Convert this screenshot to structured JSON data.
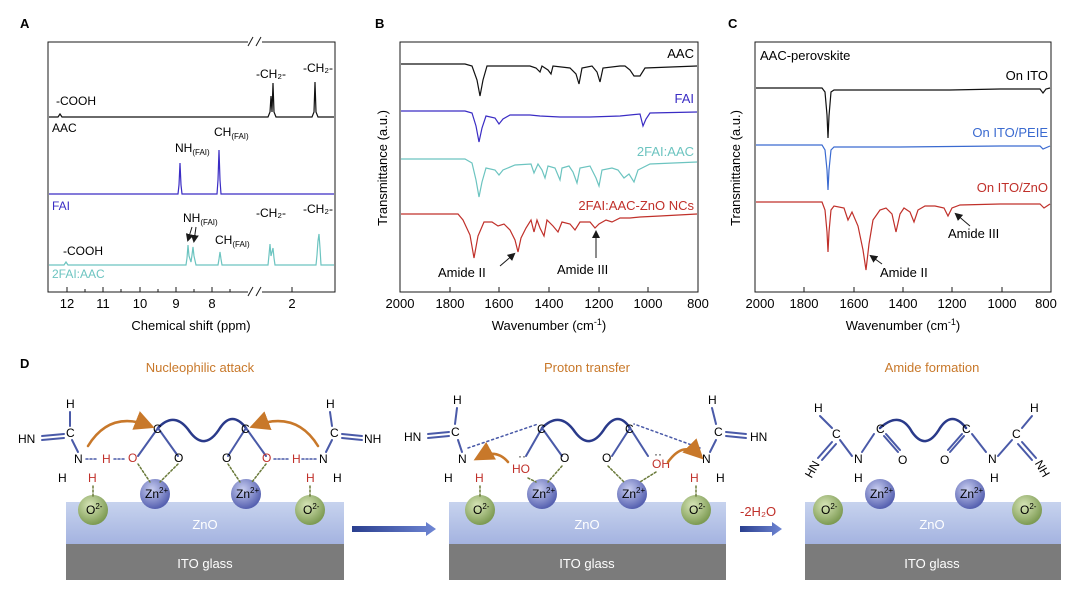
{
  "panels": {
    "A": {
      "letter": "A",
      "xlabel": "Chemical shift (ppm)",
      "ticks_left": [
        "12",
        "11",
        "10",
        "9",
        "8"
      ],
      "ticks_right": [
        "2"
      ],
      "series": [
        {
          "name": "AAC",
          "color": "#111111"
        },
        {
          "name": "FAI",
          "color": "#3a2cc4"
        },
        {
          "name": "2FAI:AAC",
          "color": "#6cc4c0"
        }
      ],
      "annotations": {
        "cooh_top": "-COOH",
        "ch2_a_top": "-CH₂-",
        "ch2_b_top": "-CH₂-",
        "nh_fai": "NH",
        "nh_fai_sub": "(FAI)",
        "ch_fai": "CH",
        "ch_fai_sub": "(FAI)",
        "cooh_bottom": "-COOH",
        "nh_bottom": "NH",
        "nh_bottom_sub": "(FAI)",
        "ch_bottom": "CH",
        "ch_bottom_sub": "(FAI)",
        "ch2_a_bottom": "-CH₂-",
        "ch2_b_bottom": "-CH₂-"
      }
    },
    "B": {
      "letter": "B",
      "xlabel": "Wavenumber (cm",
      "xlabel_sup": "-1",
      "xlabel_end": ")",
      "ylabel": "Transmittance (a.u.)",
      "ticks": [
        "2000",
        "1800",
        "1600",
        "1400",
        "1200",
        "1000",
        "800"
      ],
      "series": [
        {
          "name": "AAC",
          "color": "#111111"
        },
        {
          "name": "FAI",
          "color": "#3a2cc4"
        },
        {
          "name": "2FAI:AAC",
          "color": "#6cc4c0"
        },
        {
          "name": "2FAI:AAC-ZnO NCs",
          "color": "#c0302a"
        }
      ],
      "annotations": {
        "amide2": "Amide II",
        "amide3": "Amide III"
      }
    },
    "C": {
      "letter": "C",
      "title": "AAC-perovskite",
      "xlabel": "Wavenumber (cm",
      "xlabel_sup": "-1",
      "xlabel_end": ")",
      "ylabel": "Transmittance (a.u.)",
      "ticks": [
        "2000",
        "1800",
        "1600",
        "1400",
        "1200",
        "1000",
        "800"
      ],
      "series": [
        {
          "name": "On ITO",
          "color": "#111111"
        },
        {
          "name": "On ITO/PEIE",
          "color": "#3a6ad0"
        },
        {
          "name": "On ITO/ZnO",
          "color": "#c0302a"
        }
      ],
      "annotations": {
        "amide3": "Amide III",
        "amide2": "Amide II"
      }
    },
    "D": {
      "letter": "D",
      "steps": [
        "Nucleophilic attack",
        "Proton transfer",
        "Amide formation"
      ],
      "step_color": "#c8782a",
      "water_loss": "-2H₂O",
      "layers": {
        "zno": "ZnO",
        "ito": "ITO glass"
      },
      "ions": {
        "zn": "Zn",
        "zn_charge": "2+",
        "o": "O",
        "o_charge": "2-"
      },
      "atoms": {
        "hn": "HN",
        "nh": "NH",
        "h": "H",
        "n": "N",
        "c": "C",
        "o": "O",
        "oh": "OH",
        "ho": "HO",
        "dots": "··"
      }
    }
  },
  "chart_data": [
    {
      "panel": "A",
      "type": "line",
      "x": [
        12.6,
        12.3,
        12.0,
        11.4,
        10.0,
        9.4,
        9.17,
        9.1,
        9.02,
        8.95,
        8.4,
        8.3,
        8.25,
        2.6,
        2.45,
        2.35,
        1.5,
        1.2,
        1.05
      ],
      "series": [
        {
          "name": "AAC",
          "values": [
            0,
            0.03,
            0.05,
            0,
            0,
            0,
            0,
            0,
            0,
            0,
            0,
            0,
            0,
            0,
            0.45,
            0.6,
            0,
            0.6,
            0
          ]
        },
        {
          "name": "FAI",
          "values": [
            0,
            0,
            0,
            0,
            0,
            0,
            0.45,
            0,
            0,
            0,
            0,
            0.65,
            0,
            0,
            0,
            0,
            0,
            0,
            0
          ]
        },
        {
          "name": "2FAI:AAC",
          "values": [
            0,
            0,
            0.05,
            0,
            0,
            0,
            0,
            0.3,
            0,
            0.28,
            0,
            0.2,
            0,
            0.35,
            0.55,
            0,
            0.5,
            0.7,
            0
          ]
        }
      ],
      "xlabel": "Chemical shift (ppm)"
    },
    {
      "panel": "B",
      "type": "line",
      "xlim": [
        2000,
        800
      ],
      "x": [
        2000,
        1800,
        1720,
        1690,
        1650,
        1600,
        1550,
        1520,
        1470,
        1450,
        1420,
        1400,
        1350,
        1300,
        1270,
        1230,
        1200,
        1180,
        1150,
        1050,
        1020,
        1000,
        950,
        920,
        850,
        800
      ],
      "series": [
        {
          "name": "AAC",
          "values": [
            0,
            0,
            -0.05,
            -0.65,
            -0.05,
            -0.05,
            -0.05,
            -0.05,
            -0.15,
            -0.1,
            -0.3,
            -0.2,
            -0.05,
            -0.1,
            -0.45,
            -0.1,
            -0.45,
            -0.15,
            -0.05,
            -0.05,
            -0.05,
            -0.1,
            -0.3,
            -0.3,
            -0.05,
            0
          ]
        },
        {
          "name": "FAI",
          "values": [
            0,
            0,
            -0.05,
            -0.9,
            -0.25,
            -0.3,
            -0.3,
            -0.1,
            -0.1,
            -0.1,
            -0.1,
            -0.15,
            -0.1,
            -0.05,
            -0.05,
            -0.05,
            -0.05,
            -0.05,
            -0.05,
            -0.1,
            -0.4,
            -0.3,
            -0.1,
            -0.1,
            -0.05,
            0
          ]
        },
        {
          "name": "2FAI:AAC",
          "values": [
            0,
            0,
            -0.1,
            -0.9,
            -0.2,
            -0.25,
            -0.25,
            -0.15,
            -0.3,
            -0.2,
            -0.4,
            -0.3,
            -0.1,
            -0.2,
            -0.45,
            -0.2,
            -0.6,
            -0.3,
            -0.1,
            -0.15,
            -0.35,
            -0.4,
            -0.3,
            -0.4,
            -0.05,
            0
          ]
        },
        {
          "name": "2FAI:AAC-ZnO NCs",
          "values": [
            0,
            0,
            -0.1,
            -1.1,
            -0.4,
            -0.5,
            -0.6,
            -0.95,
            -0.5,
            -0.6,
            -0.45,
            -0.5,
            -0.3,
            -0.4,
            -0.35,
            -0.4,
            -0.3,
            -0.3,
            -0.2,
            -0.2,
            -0.2,
            -0.3,
            -0.1,
            -0.1,
            -0.05,
            0
          ]
        }
      ],
      "xlabel": "Wavenumber (cm-1)",
      "ylabel": "Transmittance (a.u.)"
    },
    {
      "panel": "C",
      "type": "line",
      "title": "AAC-perovskite",
      "xlim": [
        2000,
        800
      ],
      "x": [
        2000,
        1750,
        1720,
        1705,
        1690,
        1600,
        1550,
        1540,
        1530,
        1470,
        1450,
        1400,
        1350,
        1220,
        1210,
        1100,
        1050,
        1000,
        800
      ],
      "series": [
        {
          "name": "On ITO",
          "values": [
            0,
            0,
            -0.05,
            -1.0,
            -0.05,
            -0.02,
            -0.02,
            -0.02,
            -0.02,
            -0.02,
            -0.02,
            -0.02,
            -0.02,
            -0.02,
            -0.02,
            -0.02,
            -0.08,
            -0.02,
            0
          ]
        },
        {
          "name": "On ITO/PEIE",
          "values": [
            0,
            0,
            -0.05,
            -0.85,
            -0.05,
            -0.02,
            -0.02,
            -0.02,
            -0.02,
            -0.02,
            -0.02,
            -0.02,
            -0.02,
            -0.02,
            -0.02,
            -0.02,
            -0.04,
            -0.02,
            0
          ]
        },
        {
          "name": "On ITO/ZnO",
          "values": [
            0,
            0,
            -0.05,
            -0.8,
            -0.1,
            -0.2,
            -0.7,
            -1.2,
            -0.6,
            -0.3,
            -0.35,
            -0.2,
            -0.1,
            -0.05,
            -0.1,
            -0.02,
            -0.05,
            -0.02,
            0
          ]
        }
      ],
      "xlabel": "Wavenumber (cm-1)",
      "ylabel": "Transmittance (a.u.)"
    }
  ]
}
